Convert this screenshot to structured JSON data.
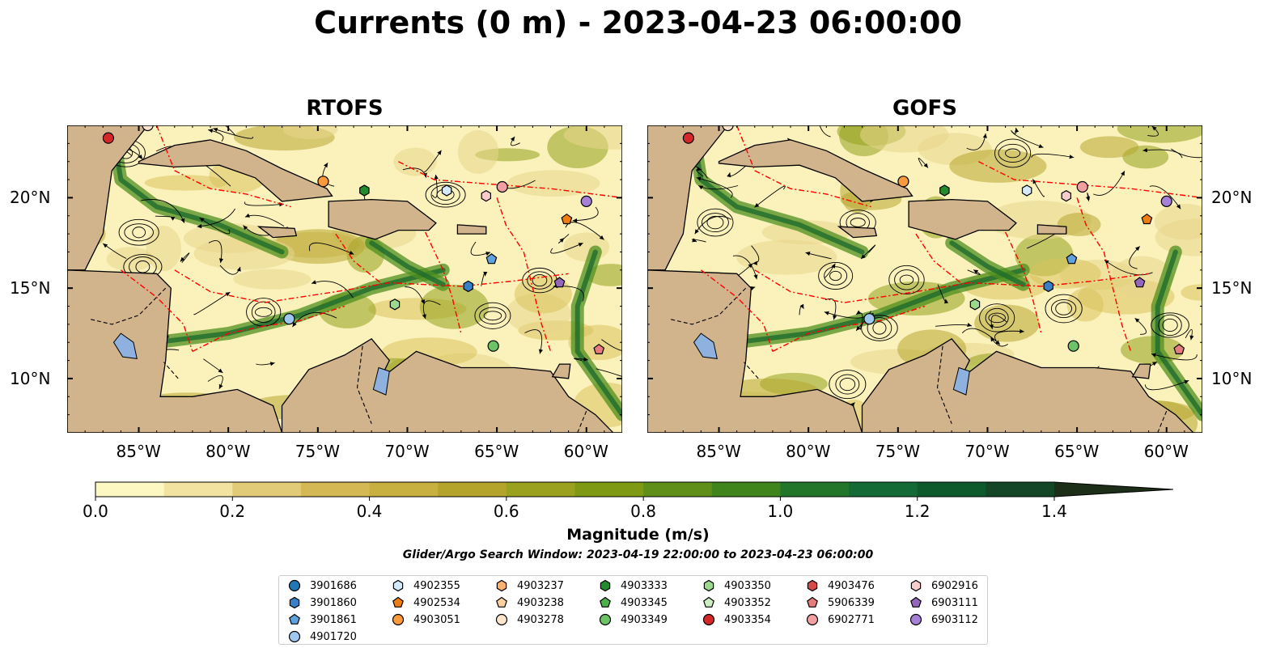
{
  "title": "Currents (0 m) - 2023-04-23 06:00:00",
  "panels": [
    {
      "title": "RTOFS"
    },
    {
      "title": "GOFS"
    }
  ],
  "axes": {
    "x_tick_labels": [
      "85°W",
      "80°W",
      "75°W",
      "70°W",
      "65°W",
      "60°W"
    ],
    "y_tick_labels": [
      "20°N",
      "15°N",
      "10°N"
    ]
  },
  "colorbar": {
    "label": "Magnitude (m/s)",
    "tick_labels": [
      "0.0",
      "0.2",
      "0.4",
      "0.6",
      "0.8",
      "1.0",
      "1.2",
      "1.4"
    ],
    "range": [
      0,
      1.5
    ],
    "extend": "max",
    "colors": [
      "#fdf7c2",
      "#f2e3a0",
      "#e2cb78",
      "#d3b854",
      "#c8b040",
      "#b5a42c",
      "#9aa11e",
      "#7e9a14",
      "#5f8f18",
      "#3f851c",
      "#21762a",
      "#146a34",
      "#0f5a2c",
      "#124626",
      "#1a3a1f",
      "#1c2d18"
    ]
  },
  "search_window": "Glider/Argo Search Window: 2023-04-19 22:00:00 to 2023-04-23 06:00:00",
  "colors": {
    "land": "#d2b48c",
    "lakes": "#8fb1e0",
    "eez_lines": "#ff0000",
    "streamlines": "#000000"
  },
  "legend": [
    {
      "id": "3901686",
      "shape": "circle",
      "color": "#1f77b4"
    },
    {
      "id": "3901860",
      "shape": "hexagon",
      "color": "#3a80c8"
    },
    {
      "id": "3901861",
      "shape": "pentagon",
      "color": "#5ea3e0"
    },
    {
      "id": "4901720",
      "shape": "circle",
      "color": "#9ec8ef"
    },
    {
      "id": "4902355",
      "shape": "hexagon",
      "color": "#d4eafb"
    },
    {
      "id": "4902534",
      "shape": "pentagon",
      "color": "#f07d12"
    },
    {
      "id": "4903051",
      "shape": "circle",
      "color": "#fb9a3c"
    },
    {
      "id": "4903237",
      "shape": "hexagon",
      "color": "#fbb06e"
    },
    {
      "id": "4903238",
      "shape": "pentagon",
      "color": "#fdd0a0"
    },
    {
      "id": "4903278",
      "shape": "circle",
      "color": "#fde4cc"
    },
    {
      "id": "4903333",
      "shape": "hexagon",
      "color": "#238b2c"
    },
    {
      "id": "4903345",
      "shape": "pentagon",
      "color": "#4caf4a"
    },
    {
      "id": "4903349",
      "shape": "circle",
      "color": "#6dc466"
    },
    {
      "id": "4903350",
      "shape": "hexagon",
      "color": "#9ad98e"
    },
    {
      "id": "4903352",
      "shape": "pentagon",
      "color": "#cdeec2"
    },
    {
      "id": "4903354",
      "shape": "circle",
      "color": "#d62728"
    },
    {
      "id": "4903476",
      "shape": "hexagon",
      "color": "#d84a4a"
    },
    {
      "id": "5906339",
      "shape": "pentagon",
      "color": "#e77c7c"
    },
    {
      "id": "6902771",
      "shape": "circle",
      "color": "#f0a0a0"
    },
    {
      "id": "6902916",
      "shape": "hexagon",
      "color": "#f9cccc"
    },
    {
      "id": "6903111",
      "shape": "pentagon",
      "color": "#9467bd"
    },
    {
      "id": "6903112",
      "shape": "circle",
      "color": "#a67fd6"
    }
  ]
}
